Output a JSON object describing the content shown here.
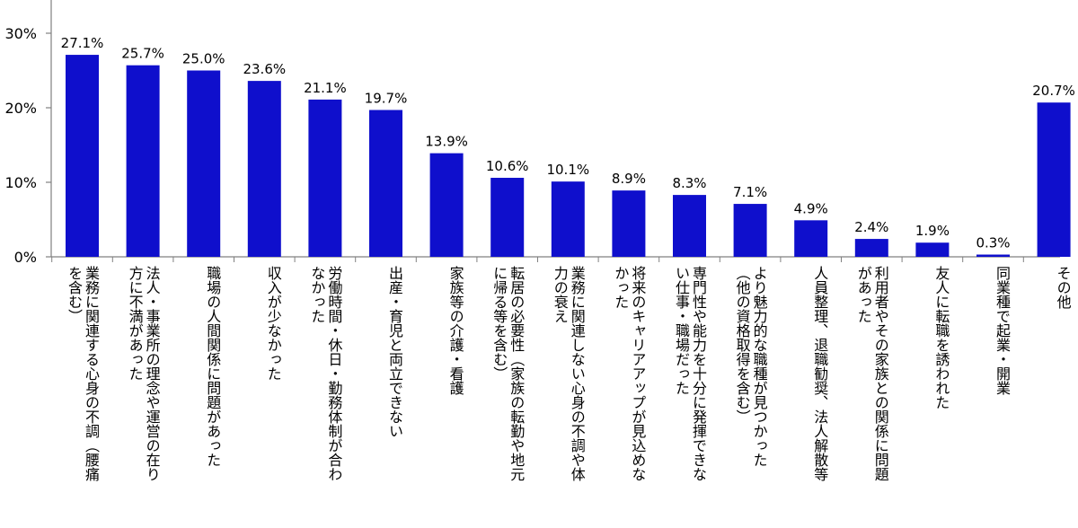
{
  "chart_data": {
    "type": "bar",
    "ylim": [
      0,
      30
    ],
    "yticks": [
      "0%",
      "10%",
      "20%",
      "30%"
    ],
    "ytick_values": [
      0,
      10,
      20,
      30
    ],
    "grid": false,
    "legend": "none",
    "bar_color": "#0F0FCC",
    "categories": [
      [
        "業務に関連する心身の不調（腰痛",
        "を含む）"
      ],
      [
        "法人・事業所の理念や運営の在り",
        "方に不満があった"
      ],
      [
        "職場の人間関係に問題があった"
      ],
      [
        "収入が少なかった"
      ],
      [
        "労働時間・休日・勤務体制が合わ",
        "なかった"
      ],
      [
        "出産・育児と両立できない"
      ],
      [
        "家族等の介護・看護"
      ],
      [
        "転居の必要性（家族の転勤や地元",
        "に帰る等を含む）"
      ],
      [
        "業務に関連しない心身の不調や体",
        "力の衰え"
      ],
      [
        "将来のキャリアアップが見込めな",
        "かった"
      ],
      [
        "専門性や能力を十分に発揮できな",
        "い仕事・職場だった"
      ],
      [
        "より魅力的な職種が見つかった",
        "（他の資格取得を含む）"
      ],
      [
        "人員整理、退職勧奨、法人解散等"
      ],
      [
        "利用者やその家族との関係に問題",
        "があった"
      ],
      [
        "友人に転職を誘われた"
      ],
      [
        "同業種で起業・開業"
      ],
      [
        "その他"
      ]
    ],
    "values": [
      27.1,
      25.7,
      25.0,
      23.6,
      21.1,
      19.7,
      13.9,
      10.6,
      10.1,
      8.9,
      8.3,
      7.1,
      4.9,
      2.4,
      1.9,
      0.3,
      20.7
    ],
    "data_labels": [
      "27.1%",
      "25.7%",
      "25.0%",
      "23.6%",
      "21.1%",
      "19.7%",
      "13.9%",
      "10.6%",
      "10.1%",
      "8.9%",
      "8.3%",
      "7.1%",
      "4.9%",
      "2.4%",
      "1.9%",
      "0.3%",
      "20.7%"
    ]
  }
}
